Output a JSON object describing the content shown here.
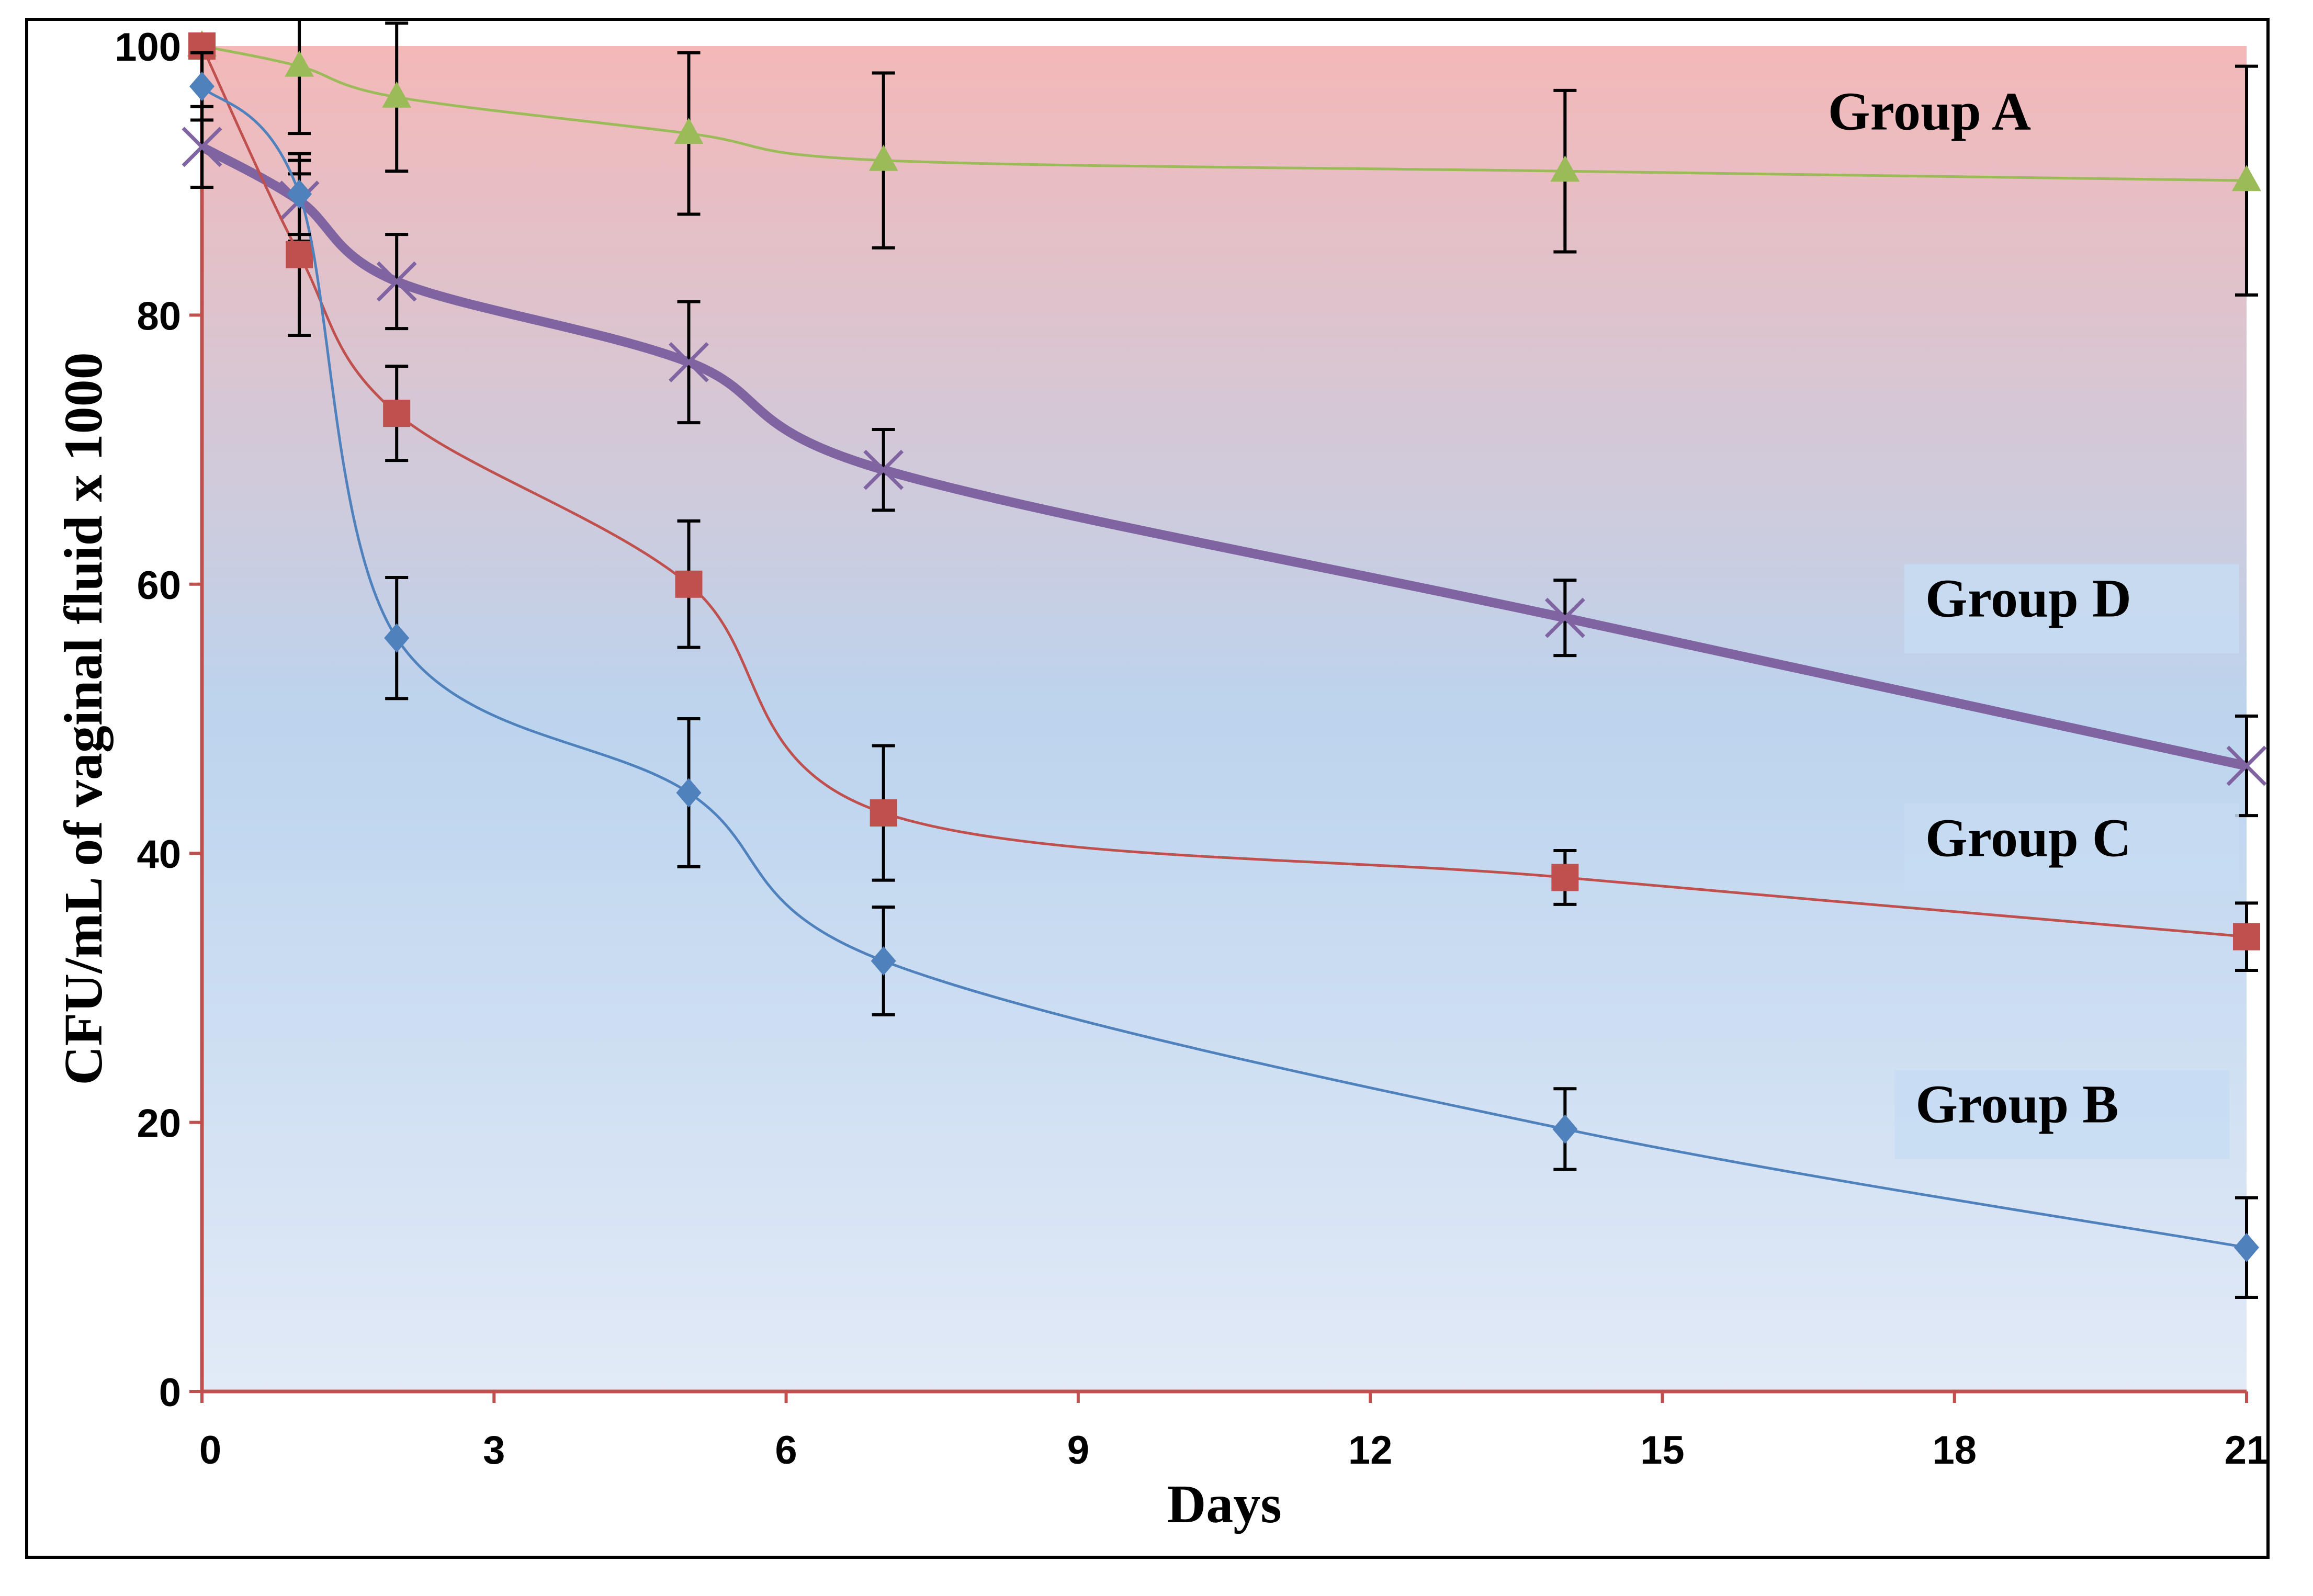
{
  "chart_data": {
    "type": "line",
    "xlabel": "Days",
    "ylabel": "CFU/mL of vaginal fluid x 1000",
    "xlim": [
      0,
      21
    ],
    "ylim": [
      0,
      100
    ],
    "xticks": [
      0,
      3,
      6,
      9,
      12,
      15,
      18,
      21
    ],
    "yticks": [
      0,
      20,
      40,
      60,
      80,
      100
    ],
    "grid": false,
    "background": {
      "top_color": "#F4B8B8",
      "bottom_color": "#E2EAF7",
      "mid_color": "#BCD4EE"
    },
    "axis_color": "#C0504D",
    "x": [
      0,
      1,
      2,
      5,
      7,
      14,
      21
    ],
    "series": [
      {
        "name": "Group A",
        "color": "#9BBB59",
        "marker": "triangle",
        "values": [
          100,
          98.5,
          96.2,
          93.5,
          91.5,
          90.7,
          90
        ],
        "errors": [
          0,
          5,
          5.5,
          6,
          6.5,
          6,
          8.5
        ]
      },
      {
        "name": "Group B",
        "color": "#4F81BD",
        "marker": "diamond",
        "values": [
          97,
          89,
          56,
          44.5,
          32,
          19.5,
          10.7
        ],
        "errors": [
          2.5,
          3,
          4.5,
          5.5,
          4,
          3,
          3.7
        ]
      },
      {
        "name": "Group C",
        "color": "#C0504D",
        "marker": "square",
        "values": [
          100,
          84.5,
          72.7,
          60,
          43,
          38.2,
          33.8
        ],
        "errors": [
          0,
          6,
          3.5,
          4.7,
          5,
          2,
          2.5
        ]
      },
      {
        "name": "Group D",
        "color": "#8064A2",
        "marker": "x",
        "values": [
          92.5,
          88.5,
          82.5,
          76.5,
          68.5,
          57.5,
          46.5
        ],
        "errors": [
          3,
          3,
          3.5,
          4.5,
          3,
          2.8,
          3.7
        ]
      }
    ],
    "annotations": [
      {
        "text": "Group A",
        "x": 16.7,
        "y": 93.8,
        "box": false
      },
      {
        "text": "Group D",
        "x": 17.7,
        "y": 57.6,
        "box": true
      },
      {
        "text": "Group C",
        "x": 17.7,
        "y": 39.8,
        "box": true
      },
      {
        "text": "Group B",
        "x": 17.6,
        "y": 20,
        "box": true
      }
    ]
  }
}
